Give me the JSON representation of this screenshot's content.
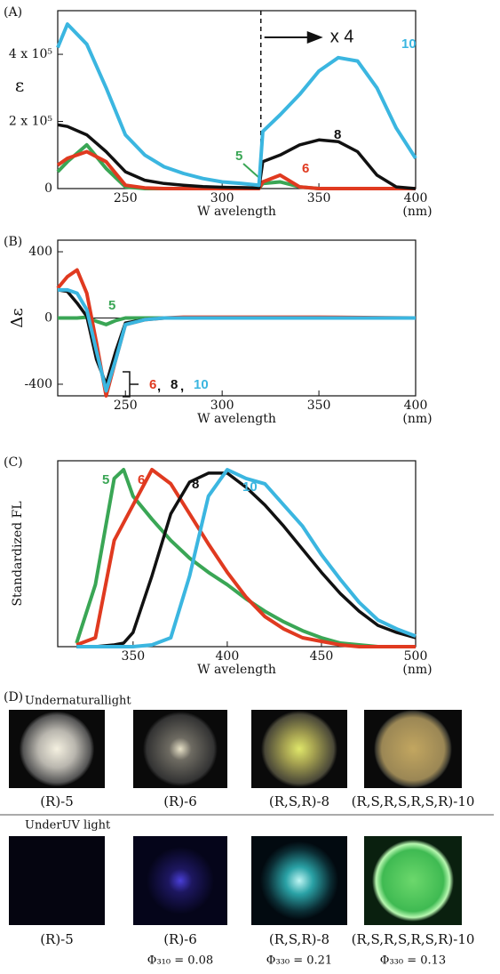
{
  "chart_data": [
    {
      "type": "line",
      "panel_label": "(A)",
      "ylabel": "ε",
      "xlabel": "W avelength",
      "xunit": "(nm)",
      "annotations": [
        "x 4"
      ],
      "vline": 320,
      "x": [
        215,
        220,
        230,
        240,
        250,
        260,
        270,
        280,
        290,
        300,
        310,
        319,
        321,
        330,
        340,
        350,
        360,
        370,
        380,
        390,
        400
      ],
      "xlim": [
        215,
        400
      ],
      "xticks": [
        250,
        300,
        350,
        400
      ],
      "ylim": [
        0,
        530000
      ],
      "yticks": [
        0,
        {
          "value": 200000,
          "label": "2 x 10⁵"
        },
        {
          "value": 400000,
          "label": "4 x 10⁵"
        }
      ],
      "series": [
        {
          "name": "5",
          "color": "#3aa655",
          "values": [
            50000,
            80000,
            130000,
            60000,
            5000,
            0,
            0,
            0,
            0,
            0,
            0,
            0,
            15000,
            20000,
            5000,
            0,
            0,
            0,
            0,
            0,
            0
          ]
        },
        {
          "name": "6",
          "color": "#e03a20",
          "values": [
            70000,
            90000,
            110000,
            80000,
            10000,
            2000,
            0,
            0,
            0,
            0,
            0,
            0,
            20000,
            40000,
            5000,
            0,
            0,
            0,
            0,
            0,
            0
          ]
        },
        {
          "name": "8",
          "color": "#111111",
          "values": [
            190000,
            185000,
            160000,
            110000,
            50000,
            25000,
            15000,
            10000,
            6000,
            4000,
            3000,
            2000,
            80000,
            100000,
            130000,
            145000,
            140000,
            110000,
            40000,
            5000,
            0
          ]
        },
        {
          "name": "10",
          "color": "#3bb6e0",
          "values": [
            420000,
            490000,
            430000,
            300000,
            160000,
            100000,
            65000,
            45000,
            30000,
            20000,
            15000,
            10000,
            170000,
            220000,
            280000,
            350000,
            390000,
            380000,
            300000,
            180000,
            90000
          ]
        }
      ]
    },
    {
      "type": "line",
      "panel_label": "(B)",
      "ylabel": "Δε",
      "xlabel": "W avelength",
      "xunit": "(nm)",
      "hline": 0,
      "series_label_separator": ",",
      "x": [
        215,
        220,
        225,
        230,
        235,
        240,
        245,
        250,
        260,
        270,
        280,
        300,
        350,
        400
      ],
      "xlim": [
        215,
        400
      ],
      "xticks": [
        250,
        300,
        350,
        400
      ],
      "ylim": [
        -470,
        470
      ],
      "yticks": [
        -400,
        0,
        400
      ],
      "series": [
        {
          "name": "5",
          "color": "#3aa655",
          "values": [
            0,
            0,
            0,
            5,
            -20,
            -40,
            -15,
            0,
            0,
            0,
            0,
            0,
            0,
            0
          ]
        },
        {
          "name": "6",
          "color": "#e03a20",
          "values": [
            180,
            250,
            290,
            150,
            -150,
            -470,
            -250,
            -40,
            -10,
            0,
            5,
            5,
            5,
            0
          ]
        },
        {
          "name": "8",
          "color": "#111111",
          "values": [
            170,
            160,
            90,
            10,
            -250,
            -400,
            -200,
            -30,
            -10,
            0,
            0,
            0,
            0,
            0
          ]
        },
        {
          "name": "10",
          "color": "#3bb6e0",
          "values": [
            170,
            170,
            150,
            50,
            -200,
            -440,
            -250,
            -40,
            -10,
            0,
            0,
            0,
            0,
            0
          ]
        }
      ]
    },
    {
      "type": "line",
      "panel_label": "(C)",
      "ylabel": "Standardized FL",
      "xlabel": "W avelength",
      "xunit": "(nm)",
      "x": [
        320,
        330,
        340,
        345,
        350,
        360,
        370,
        380,
        390,
        400,
        410,
        420,
        430,
        440,
        450,
        460,
        470,
        480,
        490,
        500
      ],
      "xlim": [
        310,
        500
      ],
      "xticks": [
        350,
        400,
        450,
        500
      ],
      "ylim": [
        0,
        1.05
      ],
      "series": [
        {
          "name": "5",
          "color": "#3aa655",
          "values": [
            0.02,
            0.35,
            0.95,
            1.0,
            0.85,
            0.72,
            0.6,
            0.5,
            0.42,
            0.35,
            0.27,
            0.2,
            0.14,
            0.09,
            0.05,
            0.02,
            0.01,
            0,
            0,
            0
          ]
        },
        {
          "name": "6",
          "color": "#e03a20",
          "values": [
            0.01,
            0.05,
            0.6,
            0.7,
            0.8,
            1.0,
            0.92,
            0.75,
            0.58,
            0.42,
            0.28,
            0.17,
            0.1,
            0.05,
            0.03,
            0.01,
            0,
            0,
            0,
            0
          ]
        },
        {
          "name": "8",
          "color": "#111111",
          "values": [
            0,
            0,
            0.01,
            0.02,
            0.08,
            0.4,
            0.75,
            0.93,
            0.98,
            0.98,
            0.9,
            0.8,
            0.68,
            0.55,
            0.42,
            0.3,
            0.2,
            0.12,
            0.08,
            0.05
          ]
        },
        {
          "name": "10",
          "color": "#3bb6e0",
          "values": [
            0,
            0,
            0,
            0,
            0,
            0.01,
            0.05,
            0.4,
            0.85,
            1.0,
            0.95,
            0.92,
            0.8,
            0.68,
            0.52,
            0.38,
            0.25,
            0.15,
            0.1,
            0.06
          ]
        }
      ]
    }
  ],
  "panel_d": {
    "label": "(D)",
    "natural": {
      "title": "Undernaturallight",
      "items": [
        "(R)-5",
        "(R)-6",
        "(R,S,R)-8",
        "(R,S,R,S,R,S,R)-10"
      ]
    },
    "uv": {
      "title": "UnderUV light",
      "items": [
        "(R)-5",
        "(R)-6",
        "(R,S,R)-8",
        "(R,S,R,S,R,S,R)-10"
      ],
      "yields": [
        null,
        "Φ₃₁₀ = 0.08",
        "Φ₃₃₀ = 0.21",
        "Φ₃₃₀ = 0.13"
      ]
    }
  }
}
